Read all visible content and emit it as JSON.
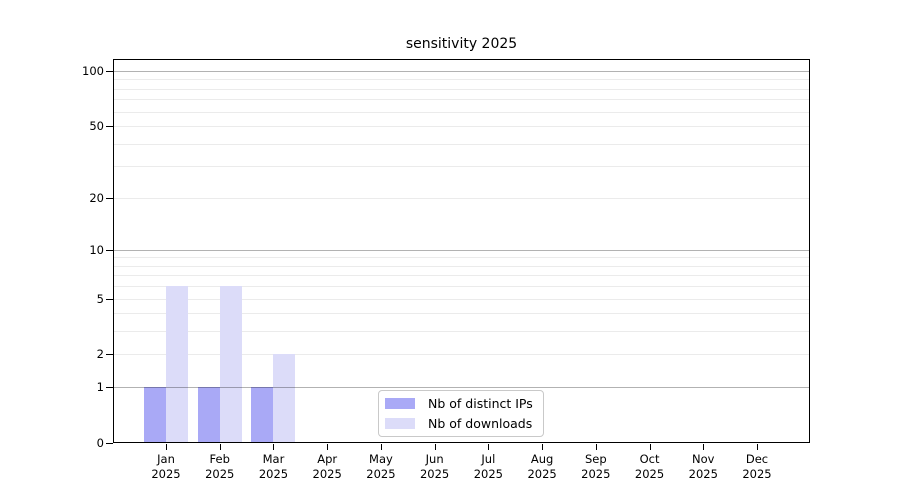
{
  "chart_data": {
    "type": "bar",
    "title": "sensitivity 2025",
    "categories": [
      "Jan",
      "Feb",
      "Mar",
      "Apr",
      "May",
      "Jun",
      "Jul",
      "Aug",
      "Sep",
      "Oct",
      "Nov",
      "Dec"
    ],
    "category_year": "2025",
    "series": [
      {
        "name": "Nb of distinct IPs",
        "color": "#a9a9f6",
        "values": [
          1,
          1,
          1,
          0,
          0,
          0,
          0,
          0,
          0,
          0,
          0,
          0
        ]
      },
      {
        "name": "Nb of downloads",
        "color": "#dcdcf9",
        "values": [
          6,
          6,
          2,
          0,
          0,
          0,
          0,
          0,
          0,
          0,
          0,
          0
        ]
      }
    ],
    "xlabel": "",
    "ylabel": "",
    "y_scale": "log1p",
    "ylim": [
      0,
      116
    ],
    "y_ticks": [
      0,
      1,
      2,
      5,
      10,
      20,
      50,
      100
    ],
    "grid_decades": [
      1,
      10,
      100
    ],
    "grid_minor": [
      2,
      3,
      4,
      5,
      6,
      7,
      8,
      9,
      20,
      30,
      40,
      50,
      60,
      70,
      80,
      90
    ],
    "legend": {
      "position": "bottom-center"
    }
  },
  "colors": {
    "background": "#ffffff",
    "axis": "#000000",
    "text": "#000000",
    "grid_major": "rgba(0,0,0,0.30)",
    "grid_minor": "rgba(0,0,0,0.08)",
    "legend_border": "#c9c9c9",
    "bar_distinct_ips": "#a9a9f6",
    "bar_downloads": "#dcdcf9"
  }
}
